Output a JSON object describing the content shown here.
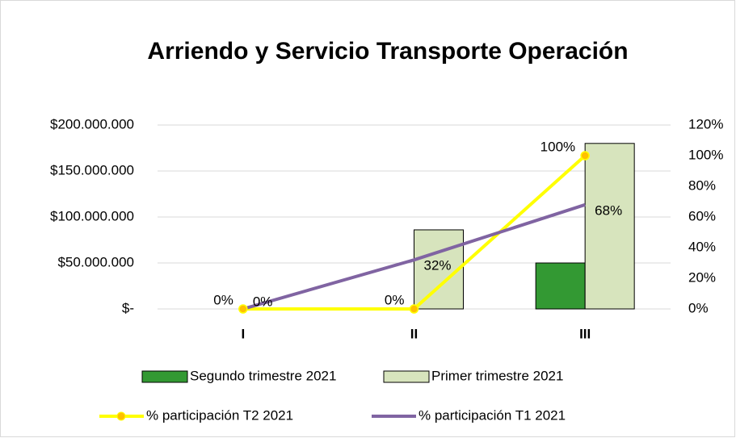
{
  "chart_data": {
    "type": "bar",
    "title": "Arriendo y Servicio Transporte Operación",
    "categories": [
      "I",
      "II",
      "III"
    ],
    "series": [
      {
        "name": "Segundo trimestre 2021",
        "color": "#339933",
        "values": [
          0,
          0,
          50000000
        ]
      },
      {
        "name": "Primer trimestre 2021",
        "color": "#d7e4bd",
        "values": [
          0,
          86000000,
          180000000
        ]
      },
      {
        "name": "% participación T2 2021",
        "type": "line",
        "axis": "y2",
        "color": "#ffff00",
        "marker_color": "#ffc000",
        "values": [
          0,
          0,
          100
        ],
        "value_labels": [
          "0%",
          "0%",
          "100%"
        ]
      },
      {
        "name": "% participación T1 2021",
        "type": "line",
        "axis": "y2",
        "color": "#8064a2",
        "values": [
          0,
          32,
          68
        ],
        "value_labels": [
          "0%",
          "32%",
          "68%"
        ]
      }
    ],
    "ylim": [
      0,
      200000000
    ],
    "yticks": [
      {
        "value": 0,
        "label": "$-"
      },
      {
        "value": 50000000,
        "label": "$50.000.000"
      },
      {
        "value": 100000000,
        "label": "$100.000.000"
      },
      {
        "value": 150000000,
        "label": "$150.000.000"
      },
      {
        "value": 200000000,
        "label": "$200.000.000"
      }
    ],
    "y2lim": [
      0,
      120
    ],
    "y2ticks": [
      {
        "value": 0,
        "label": "0%"
      },
      {
        "value": 20,
        "label": "20%"
      },
      {
        "value": 40,
        "label": "40%"
      },
      {
        "value": 60,
        "label": "60%"
      },
      {
        "value": 80,
        "label": "80%"
      },
      {
        "value": 100,
        "label": "100%"
      },
      {
        "value": 120,
        "label": "120%"
      }
    ],
    "grid": true,
    "legend": "bottom"
  }
}
